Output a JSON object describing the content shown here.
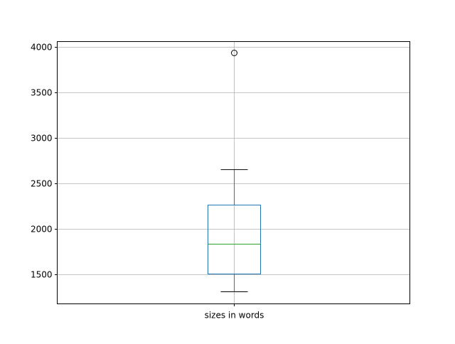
{
  "chart_data": {
    "type": "box",
    "title": "",
    "xlabel": "",
    "ylabel": "",
    "categories": [
      "sizes in words"
    ],
    "boxes": [
      {
        "label": "sizes in words",
        "whisker_low": 1305,
        "q1": 1500,
        "median": 1828,
        "q3": 2258,
        "whisker_high": 2648,
        "outliers": [
          3930
        ]
      }
    ],
    "ylim": [
      1172,
      4055
    ],
    "yticks": [
      1500,
      2000,
      2500,
      3000,
      3500,
      4000
    ],
    "ytick_labels": [
      "1500",
      "2000",
      "2500",
      "3000",
      "3500",
      "4000"
    ],
    "grid": true,
    "colors": {
      "box": "#1f77b4",
      "median": "#2ca02c",
      "whisker": "#1f77b4",
      "cap": "#000000",
      "grid": "#b0b0b0"
    }
  }
}
